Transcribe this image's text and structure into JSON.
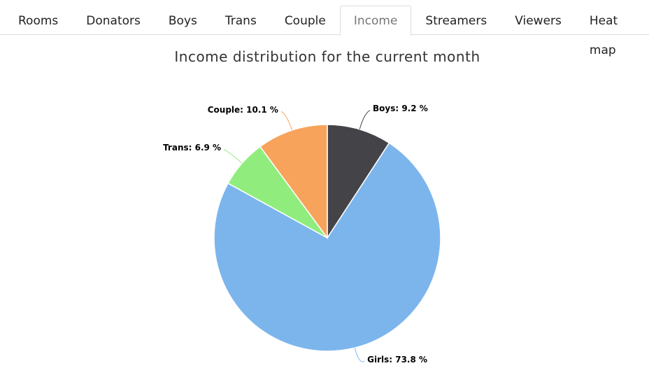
{
  "tabs": [
    {
      "label": "Rooms"
    },
    {
      "label": "Donators"
    },
    {
      "label": "Boys"
    },
    {
      "label": "Trans"
    },
    {
      "label": "Couple"
    },
    {
      "label": "Income",
      "active": true
    },
    {
      "label": "Streamers"
    },
    {
      "label": "Viewers"
    },
    {
      "label": "Heat map"
    }
  ],
  "chart_data": {
    "type": "pie",
    "title": "Income distribution for the current month",
    "values": [
      9.2,
      73.8,
      6.9,
      10.1
    ],
    "value_labels": [
      "Boys: 9.2 %",
      "Girls: 73.8 %",
      "Trans: 6.9 %",
      "Couple: 10.1 %"
    ],
    "colors": [
      "#434348",
      "#7cb5ec",
      "#90ed7d",
      "#f7a35c"
    ]
  }
}
